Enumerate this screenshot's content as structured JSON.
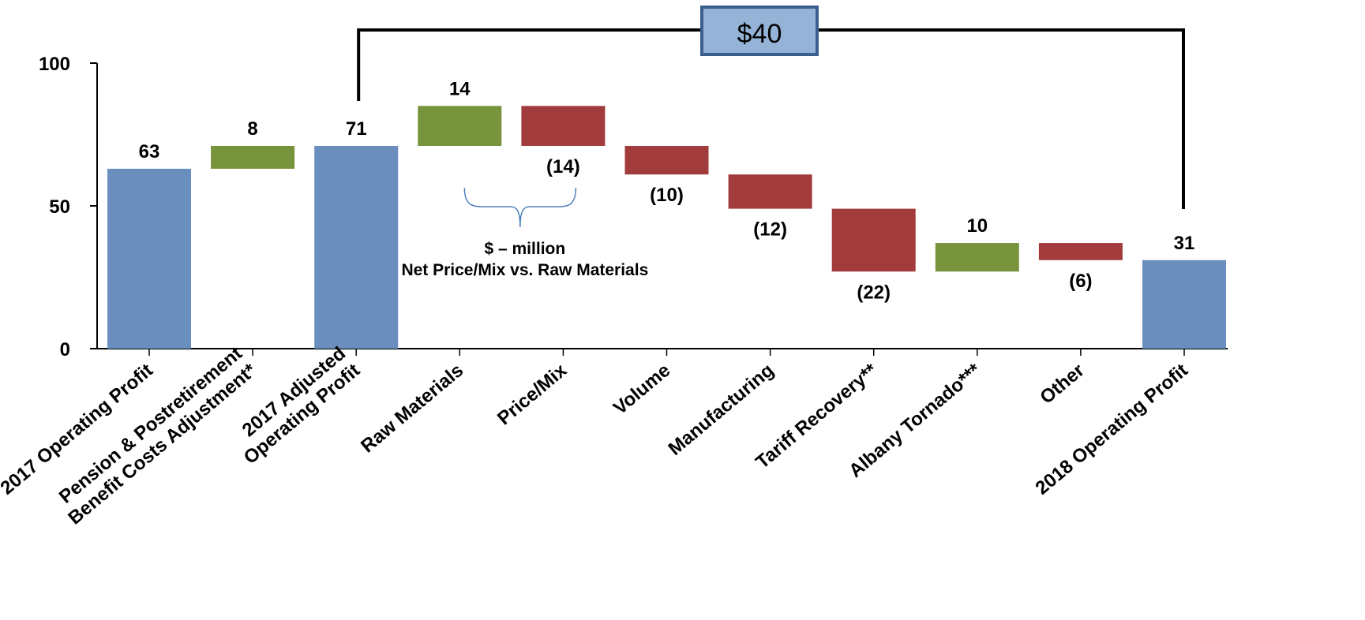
{
  "chart_data": {
    "type": "bar",
    "subtype": "waterfall",
    "categories": [
      "2017 Operating Profit",
      "Pension & Postretirement|Benefit Costs Adjustment*",
      "2017 Adjusted|Operating Profit",
      "Raw Materials",
      "Price/Mix",
      "Volume",
      "Manufacturing",
      "Tariff Recovery**",
      "Albany Tornado***",
      "Other",
      "2018 Operating Profit"
    ],
    "values": [
      63,
      8,
      71,
      14,
      -14,
      -10,
      -12,
      -22,
      10,
      -6,
      31
    ],
    "bar_kinds": [
      "total",
      "delta",
      "total",
      "delta",
      "delta",
      "delta",
      "delta",
      "delta",
      "delta",
      "delta",
      "total"
    ],
    "value_labels": [
      "63",
      "8",
      "71",
      "14",
      "(14)",
      "(10)",
      "(12)",
      "(22)",
      "10",
      "(6)",
      "31"
    ],
    "ylim": [
      0,
      100
    ],
    "yticks": [
      0,
      50,
      100
    ],
    "xlabel": "",
    "ylabel": "",
    "grid": false,
    "colors": {
      "total": "#6a8fbe",
      "increase": "#77933c",
      "decrease": "#a23b3b",
      "callout_fill": "#95b3d7",
      "callout_border": "#3a5f8f"
    },
    "annotations": {
      "difference_callout": "$40",
      "bracket_note_line1": "$ – million",
      "bracket_note_line2": "Net Price/Mix vs. Raw Materials"
    }
  }
}
